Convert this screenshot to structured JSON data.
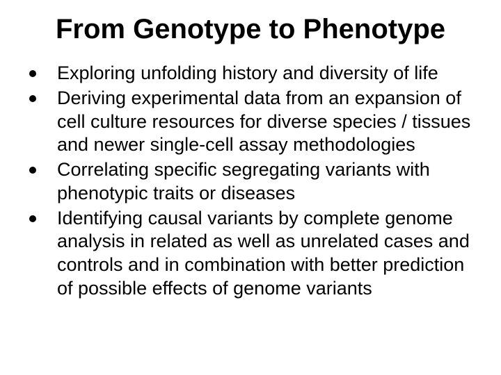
{
  "slide": {
    "title": "From Genotype to Phenotype",
    "bullets": [
      "Exploring unfolding history and diversity of life",
      "Deriving experimental data from an expansion of cell culture resources for diverse species / tissues and newer single-cell assay methodologies",
      "Correlating specific segregating variants with phenotypic traits or diseases",
      "Identifying causal variants by complete genome analysis in related as well as unrelated cases and controls and in combination with better prediction of possible effects of genome variants"
    ],
    "title_fontsize": 40,
    "body_fontsize": 27,
    "text_color": "#000000",
    "background_color": "#ffffff",
    "bullet_color": "#000000"
  }
}
